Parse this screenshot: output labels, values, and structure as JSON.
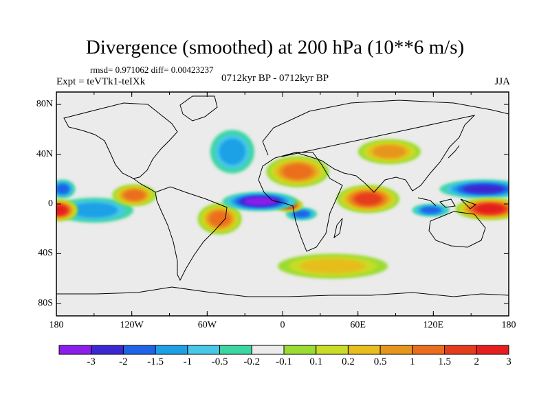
{
  "title": "Divergence (smoothed) at 200 hPa (10**6 m/s)",
  "stats_text": "rmsd= 0.971062 diff= 0.00423237",
  "expt_text": "Expt = teVTk1-teIXk",
  "period_text": "0712kyr BP - 0712kyr BP",
  "season": "JJA",
  "colors": {
    "bins": [
      "#8c1eeb",
      "#3c28d2",
      "#1e64e6",
      "#1ea0e6",
      "#46c8e6",
      "#3cd7a0",
      "#ebebeb",
      "#9bdc32",
      "#c8dc28",
      "#e6be1e",
      "#e6961e",
      "#eb6e1e",
      "#e63c1e",
      "#e61e1e"
    ],
    "land": "#000000",
    "frame": "#000000"
  },
  "chart_data": {
    "type": "heatmap",
    "projection": "cylindrical equidistant",
    "title": "Divergence (smoothed) at 200 hPa (10**6 m/s)",
    "x_range": [
      -180,
      180
    ],
    "y_range": [
      -90,
      90
    ],
    "x_ticks": [
      {
        "value": -180,
        "label": "180"
      },
      {
        "value": -120,
        "label": "120W"
      },
      {
        "value": -60,
        "label": "60W"
      },
      {
        "value": 0,
        "label": "0"
      },
      {
        "value": 60,
        "label": "60E"
      },
      {
        "value": 120,
        "label": "120E"
      },
      {
        "value": 180,
        "label": "180"
      }
    ],
    "y_ticks": [
      {
        "value": 80,
        "label": "80N"
      },
      {
        "value": 40,
        "label": "40N"
      },
      {
        "value": 0,
        "label": "0"
      },
      {
        "value": -40,
        "label": "40S"
      },
      {
        "value": -80,
        "label": "80S"
      }
    ],
    "colorbar": {
      "levels": [
        "-3",
        "-2",
        "-1.5",
        "-1",
        "-0.5",
        "-0.2",
        "-0.1",
        "0.1",
        "0.2",
        "0.5",
        "1",
        "1.5",
        "2",
        "3"
      ],
      "bin_count": 14
    },
    "features": [
      {
        "name": "equatorial-atlantic-convergence",
        "lon": -18,
        "lat": 2,
        "rx": 24,
        "ry": 6,
        "value": -3.2
      },
      {
        "name": "gulf-of-guinea-divergence",
        "lon": 5,
        "lat": -1,
        "rx": 9,
        "ry": 4,
        "value": 2.6
      },
      {
        "name": "west-pacific-divergence",
        "lon": 165,
        "lat": -4,
        "rx": 22,
        "ry": 7,
        "value": 2.7
      },
      {
        "name": "dateline-divergence",
        "lon": -178,
        "lat": -5,
        "rx": 12,
        "ry": 7,
        "value": 2.5
      },
      {
        "name": "indian-ocean-divergence",
        "lon": 68,
        "lat": 4,
        "rx": 20,
        "ry": 9,
        "value": 1.8
      },
      {
        "name": "south-america-divergence",
        "lon": -50,
        "lat": -12,
        "rx": 14,
        "ry": 10,
        "value": 1.6
      },
      {
        "name": "east-pacific-divergence",
        "lon": -118,
        "lat": 7,
        "rx": 14,
        "ry": 7,
        "value": 1.6
      },
      {
        "name": "north-africa-divergence",
        "lon": 12,
        "lat": 26,
        "rx": 20,
        "ry": 10,
        "value": 1.3
      },
      {
        "name": "maritime-continent-convergence",
        "lon": 118,
        "lat": -5,
        "rx": 12,
        "ry": 4,
        "value": -1.7
      },
      {
        "name": "west-pacific-convergence",
        "lon": 160,
        "lat": 12,
        "rx": 28,
        "ry": 6,
        "value": -1.8
      },
      {
        "name": "dateline-convergence",
        "lon": -175,
        "lat": 12,
        "rx": 8,
        "ry": 6,
        "value": -1.4
      },
      {
        "name": "central-africa-convergence",
        "lon": 15,
        "lat": -8,
        "rx": 10,
        "ry": 4,
        "value": -1.5
      },
      {
        "name": "tropical-pacific-convergence",
        "lon": -150,
        "lat": -5,
        "rx": 25,
        "ry": 8,
        "value": -0.9
      },
      {
        "name": "north-atlantic-convergence",
        "lon": -40,
        "lat": 42,
        "rx": 14,
        "ry": 14,
        "value": -0.8
      },
      {
        "name": "southern-ocean-positive",
        "lon": 40,
        "lat": -50,
        "rx": 35,
        "ry": 8,
        "value": 0.6
      },
      {
        "name": "asia-positive",
        "lon": 85,
        "lat": 42,
        "rx": 20,
        "ry": 8,
        "value": 0.8
      }
    ]
  }
}
